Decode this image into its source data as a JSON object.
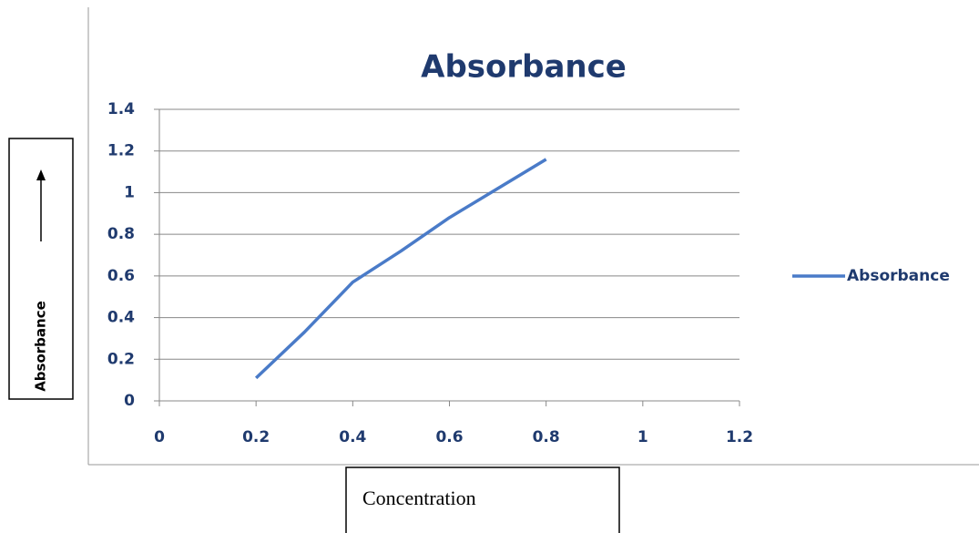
{
  "chart_data": {
    "type": "line",
    "title": "Absorbance",
    "x_label": "Concentration",
    "y_label": "Absorbance",
    "x": [
      0.2,
      0.3,
      0.4,
      0.5,
      0.6,
      0.7,
      0.8
    ],
    "series": [
      {
        "name": "Absorbance",
        "color": "#4a7bc8",
        "values": [
          0.11,
          0.33,
          0.57,
          0.72,
          0.88,
          1.02,
          1.16
        ]
      }
    ],
    "xlim": [
      0,
      1.2
    ],
    "xticks": [
      0,
      0.2,
      0.4,
      0.6,
      0.8,
      1,
      1.2
    ],
    "ylim": [
      0,
      1.4
    ],
    "yticks": [
      0,
      0.2,
      0.4,
      0.6,
      0.8,
      1,
      1.2,
      1.4
    ],
    "grid": true,
    "legend": "right"
  }
}
